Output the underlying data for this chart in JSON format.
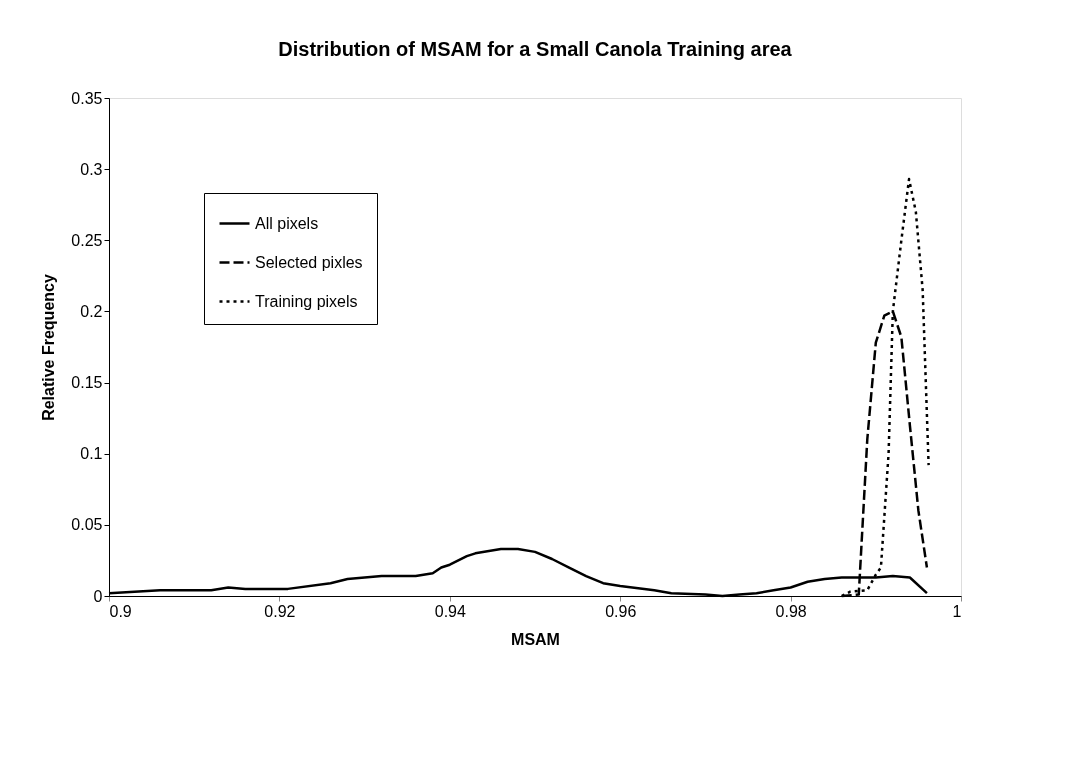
{
  "chart_data": {
    "type": "line",
    "title": "Distribution of MSAM for a Small Canola Training area",
    "xlabel": "MSAM",
    "ylabel": "Relative Frequency",
    "xlim": [
      0.9,
      1
    ],
    "xticks": [
      0.9,
      0.92,
      0.94,
      0.96,
      0.98,
      1
    ],
    "ylim": [
      0,
      0.35
    ],
    "yticks": [
      0,
      0.05,
      0.1,
      0.15,
      0.2,
      0.25,
      0.3,
      0.35
    ],
    "grid": false,
    "legend": "top left",
    "marker": "none",
    "series": [
      {
        "name": "All pixels",
        "color": "#000000",
        "line_style": "solid",
        "x": [
          0.9,
          0.903,
          0.906,
          0.912,
          0.914,
          0.916,
          0.921,
          0.926,
          0.928,
          0.93,
          0.932,
          0.936,
          0.938,
          0.939,
          0.94,
          0.942,
          0.943,
          0.946,
          0.948,
          0.95,
          0.952,
          0.954,
          0.956,
          0.958,
          0.96,
          0.964,
          0.966,
          0.97,
          0.972,
          0.974,
          0.976,
          0.978,
          0.98,
          0.982,
          0.984,
          0.986,
          0.99,
          0.992,
          0.994,
          0.996
        ],
        "values": [
          0.002,
          0.003,
          0.004,
          0.004,
          0.006,
          0.005,
          0.005,
          0.009,
          0.012,
          0.013,
          0.014,
          0.014,
          0.016,
          0.02,
          0.022,
          0.028,
          0.03,
          0.033,
          0.033,
          0.031,
          0.026,
          0.02,
          0.014,
          0.009,
          0.007,
          0.004,
          0.002,
          0.001,
          0.0,
          0.001,
          0.002,
          0.004,
          0.006,
          0.01,
          0.012,
          0.013,
          0.013,
          0.014,
          0.013,
          0.002
        ]
      },
      {
        "name": "Selected pixles",
        "color": "#000000",
        "line_style": "dashed",
        "x": [
          0.986,
          0.988,
          0.989,
          0.99,
          0.991,
          0.992,
          0.993,
          0.994,
          0.995,
          0.996
        ],
        "values": [
          0.0,
          0.001,
          0.11,
          0.178,
          0.197,
          0.2,
          0.182,
          0.12,
          0.06,
          0.02
        ]
      },
      {
        "name": "Training pixels",
        "color": "#000000",
        "line_style": "dotted",
        "x": [
          0.986,
          0.987,
          0.989,
          0.99,
          0.9906,
          0.9915,
          0.992,
          0.993,
          0.9939,
          0.9947,
          0.9955,
          0.9962
        ],
        "values": [
          0.0,
          0.003,
          0.004,
          0.015,
          0.02,
          0.1,
          0.2,
          0.25,
          0.293,
          0.27,
          0.215,
          0.092
        ]
      }
    ]
  }
}
